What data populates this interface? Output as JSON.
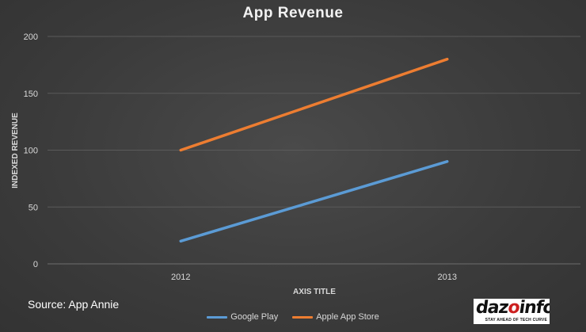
{
  "chart_data": {
    "type": "line",
    "title": "App Revenue",
    "xlabel": "AXIS TITLE",
    "ylabel": "INDEXED REVENUE",
    "categories": [
      "2012",
      "2013"
    ],
    "ylim": [
      0,
      200
    ],
    "yticks": [
      0,
      50,
      100,
      150,
      200
    ],
    "grid": true,
    "legend_position": "bottom",
    "series": [
      {
        "name": "Google Play",
        "values": [
          20,
          90
        ],
        "color": "#5b9bd5"
      },
      {
        "name": "Apple App Store",
        "values": [
          100,
          180
        ],
        "color": "#ed7d31"
      }
    ]
  },
  "source": "Source: App Annie",
  "logo": {
    "word_prefix": "daz",
    "word_accent": "o",
    "word_suffix": "info",
    "tagline": "STAY AHEAD OF TECH CURVE"
  }
}
